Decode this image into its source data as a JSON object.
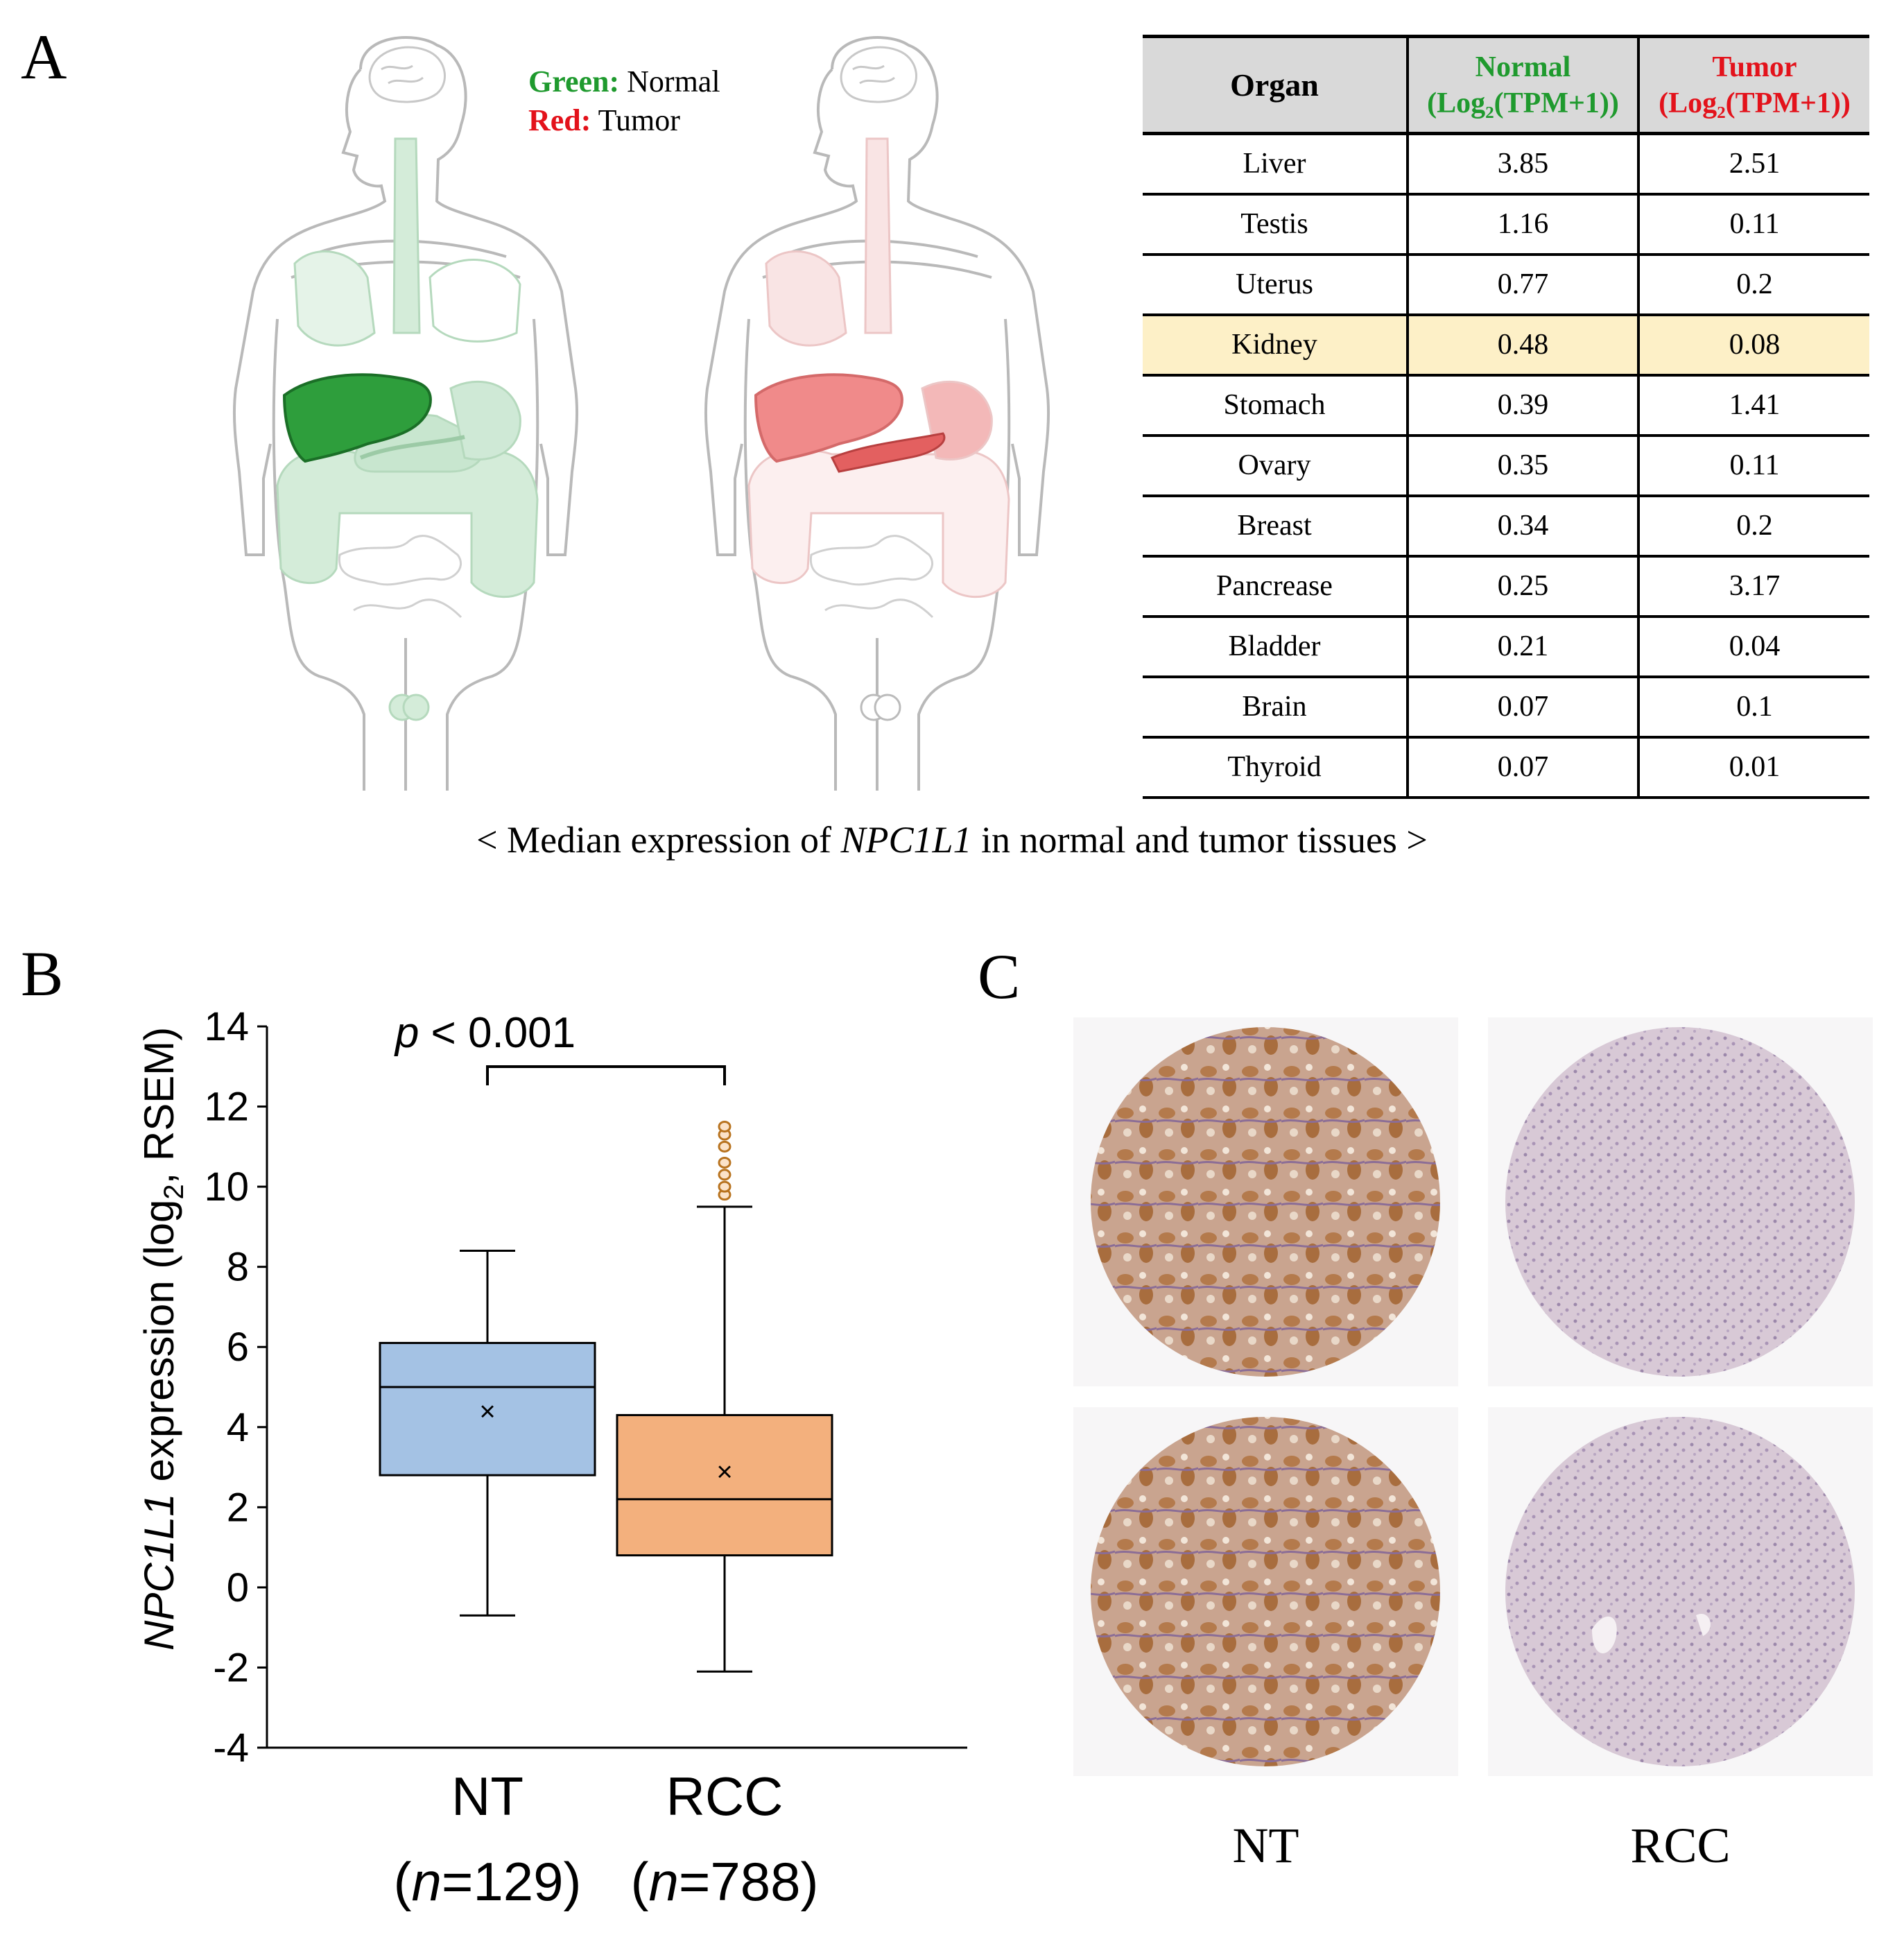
{
  "panels": {
    "a": "A",
    "b": "B",
    "c": "C"
  },
  "legend": {
    "green_label": "Green:",
    "green_text": "Normal",
    "red_label": "Red:",
    "red_text": "Tumor",
    "green_color": "#1f9a2e",
    "red_color": "#e3121b"
  },
  "table": {
    "header": {
      "organ": "Organ",
      "normal": "Normal",
      "normal_sub": "(Log₂(TPM+1))",
      "tumor": "Tumor",
      "tumor_sub": "(Log₂(TPM+1))"
    },
    "highlight_row": "Kidney",
    "rows": [
      {
        "organ": "Liver",
        "normal": "3.85",
        "tumor": "2.51"
      },
      {
        "organ": "Testis",
        "normal": "1.16",
        "tumor": "0.11"
      },
      {
        "organ": "Uterus",
        "normal": "0.77",
        "tumor": "0.2"
      },
      {
        "organ": "Kidney",
        "normal": "0.48",
        "tumor": "0.08"
      },
      {
        "organ": "Stomach",
        "normal": "0.39",
        "tumor": "1.41"
      },
      {
        "organ": "Ovary",
        "normal": "0.35",
        "tumor": "0.11"
      },
      {
        "organ": "Breast",
        "normal": "0.34",
        "tumor": "0.2"
      },
      {
        "organ": "Pancrease",
        "normal": "0.25",
        "tumor": "3.17"
      },
      {
        "organ": "Bladder",
        "normal": "0.21",
        "tumor": "0.04"
      },
      {
        "organ": "Brain",
        "normal": "0.07",
        "tumor": "0.1"
      },
      {
        "organ": "Thyroid",
        "normal": "0.07",
        "tumor": "0.01"
      }
    ]
  },
  "caption": {
    "prefix": "< Median expression of ",
    "gene": "NPC1L1",
    "suffix": " in normal and tumor tissues >"
  },
  "chart_data": {
    "type": "box",
    "title": "",
    "ylabel_gene": "NPC1L1",
    "ylabel_rest": " expression (log",
    "ylabel_sub": "2",
    "ylabel_end": ",  RSEM)",
    "ylim": [
      -4,
      14
    ],
    "yticks": [
      -4,
      -2,
      0,
      2,
      4,
      6,
      8,
      10,
      12,
      14
    ],
    "significance": {
      "label_p": "p",
      "label_rest": " < 0.001"
    },
    "series": [
      {
        "name": "NT",
        "n_label": "(n=129)",
        "n_prefix": "(",
        "n_italic": "n",
        "n_suffix": "=129)",
        "min": -0.7,
        "q1": 2.8,
        "median": 5.0,
        "q3": 6.1,
        "max": 8.4,
        "mean": 4.4,
        "outliers": [],
        "fill": "#a4c2e4"
      },
      {
        "name": "RCC",
        "n_label": "(n=788)",
        "n_prefix": "(",
        "n_italic": "n",
        "n_suffix": "=788)",
        "min": -2.1,
        "q1": 0.8,
        "median": 2.2,
        "q3": 4.3,
        "max": 9.5,
        "mean": 2.9,
        "outliers": [
          9.8,
          10.0,
          10.3,
          10.6,
          11.0,
          11.3,
          11.5
        ],
        "fill": "#f3b07d"
      }
    ]
  },
  "ihc": {
    "labels": {
      "nt": "NT",
      "rcc": "RCC"
    }
  }
}
